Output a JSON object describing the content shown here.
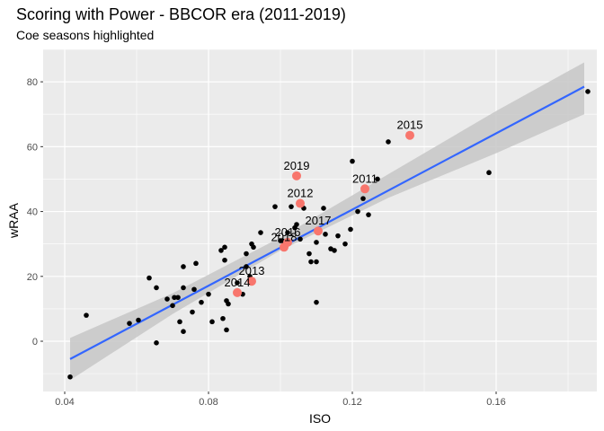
{
  "chart_data": {
    "type": "scatter",
    "title": "Scoring with Power - BBCOR era (2011-2019)",
    "subtitle": "Coe seasons highlighted",
    "xlabel": "ISO",
    "ylabel": "wRAA",
    "xlim": [
      0.034,
      0.188
    ],
    "ylim": [
      -15.5,
      90
    ],
    "x_ticks": [
      0.04,
      0.08,
      0.12,
      0.16
    ],
    "x_tick_labels": [
      "0.04",
      "0.08",
      "0.12",
      "0.16"
    ],
    "y_ticks": [
      0,
      20,
      40,
      60,
      80
    ],
    "y_tick_labels": [
      "0",
      "20",
      "40",
      "60",
      "80"
    ],
    "grid": true,
    "colors": {
      "panel": "#ebebeb",
      "grid": "#ffffff",
      "points": "#000000",
      "highlight": "#f8766d",
      "trend_line": "#3366ff",
      "ribbon": "#c7c7c7"
    },
    "trend_line": {
      "x": [
        0.0415,
        0.1845
      ],
      "y": [
        -5.5,
        78.5
      ]
    },
    "confidence_band": {
      "x": [
        0.0415,
        0.07,
        0.1,
        0.13,
        0.16,
        0.1845
      ],
      "lower": [
        -12.0,
        8.4,
        28.0,
        44.2,
        58.0,
        70.0
      ],
      "upper": [
        1.0,
        14.8,
        32.0,
        51.5,
        71.0,
        86.0
      ]
    },
    "points": [
      [
        0.0415,
        -11
      ],
      [
        0.046,
        8
      ],
      [
        0.058,
        5.5
      ],
      [
        0.0605,
        6.5
      ],
      [
        0.0635,
        19.5
      ],
      [
        0.0655,
        16.5
      ],
      [
        0.0655,
        -0.5
      ],
      [
        0.0685,
        13
      ],
      [
        0.07,
        11
      ],
      [
        0.0705,
        13.5
      ],
      [
        0.0715,
        13.5
      ],
      [
        0.072,
        6
      ],
      [
        0.073,
        16.5
      ],
      [
        0.073,
        3
      ],
      [
        0.073,
        23
      ],
      [
        0.0755,
        9
      ],
      [
        0.076,
        16
      ],
      [
        0.0765,
        24
      ],
      [
        0.078,
        12
      ],
      [
        0.08,
        14.5
      ],
      [
        0.081,
        6
      ],
      [
        0.0835,
        28
      ],
      [
        0.084,
        7
      ],
      [
        0.0845,
        25
      ],
      [
        0.0845,
        29
      ],
      [
        0.085,
        3.5
      ],
      [
        0.085,
        12.5
      ],
      [
        0.0855,
        11.5
      ],
      [
        0.088,
        18
      ],
      [
        0.0895,
        14.5
      ],
      [
        0.0905,
        27
      ],
      [
        0.0905,
        23
      ],
      [
        0.0915,
        20
      ],
      [
        0.092,
        30
      ],
      [
        0.0925,
        29
      ],
      [
        0.0945,
        33.5
      ],
      [
        0.0985,
        41.5
      ],
      [
        0.1,
        31
      ],
      [
        0.1005,
        31
      ],
      [
        0.102,
        33.5
      ],
      [
        0.103,
        41.5
      ],
      [
        0.104,
        35
      ],
      [
        0.1045,
        36
      ],
      [
        0.1055,
        31.5
      ],
      [
        0.1065,
        41
      ],
      [
        0.108,
        27
      ],
      [
        0.1085,
        24.5
      ],
      [
        0.11,
        30.5
      ],
      [
        0.11,
        24.5
      ],
      [
        0.11,
        12
      ],
      [
        0.112,
        41
      ],
      [
        0.1125,
        33
      ],
      [
        0.114,
        28.5
      ],
      [
        0.115,
        28
      ],
      [
        0.116,
        32.5
      ],
      [
        0.118,
        30
      ],
      [
        0.1195,
        34.5
      ],
      [
        0.12,
        55.5
      ],
      [
        0.1215,
        40
      ],
      [
        0.123,
        44
      ],
      [
        0.1245,
        39
      ],
      [
        0.127,
        50
      ],
      [
        0.13,
        61.5
      ],
      [
        0.158,
        52
      ],
      [
        0.1855,
        77
      ]
    ],
    "highlighted": [
      {
        "label": "2011",
        "x": 0.1235,
        "y": 47
      },
      {
        "label": "2012",
        "x": 0.1055,
        "y": 42.5
      },
      {
        "label": "2013",
        "x": 0.092,
        "y": 18.5
      },
      {
        "label": "2014",
        "x": 0.088,
        "y": 15
      },
      {
        "label": "2015",
        "x": 0.136,
        "y": 63.5
      },
      {
        "label": "2016",
        "x": 0.102,
        "y": 30.5
      },
      {
        "label": "2017",
        "x": 0.1105,
        "y": 34
      },
      {
        "label": "2018",
        "x": 0.101,
        "y": 29
      },
      {
        "label": "2019",
        "x": 0.1045,
        "y": 51
      }
    ]
  }
}
